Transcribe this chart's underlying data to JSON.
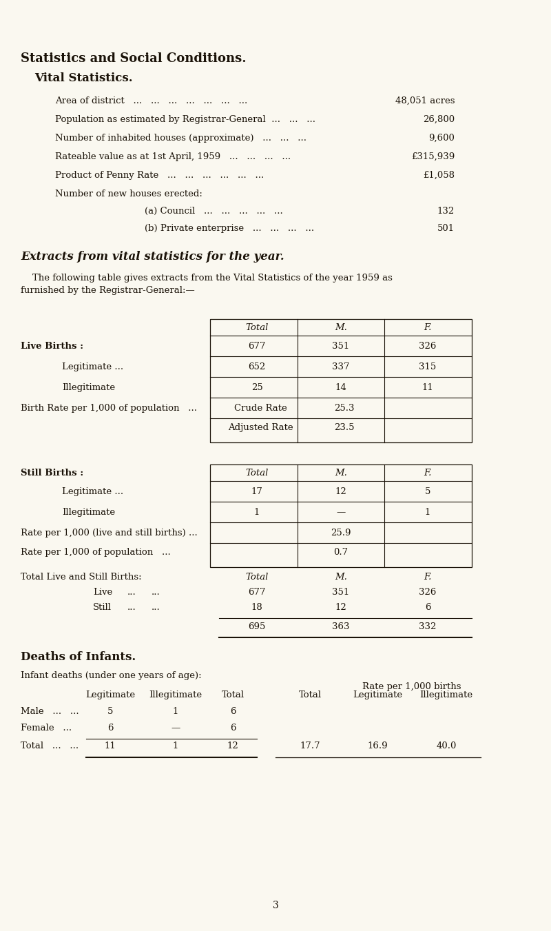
{
  "bg_color": "#faf8f0",
  "text_color": "#1a1208",
  "title1": "Statistics and Social Conditions.",
  "title2": "Vital Statistics.",
  "page_number": "3"
}
